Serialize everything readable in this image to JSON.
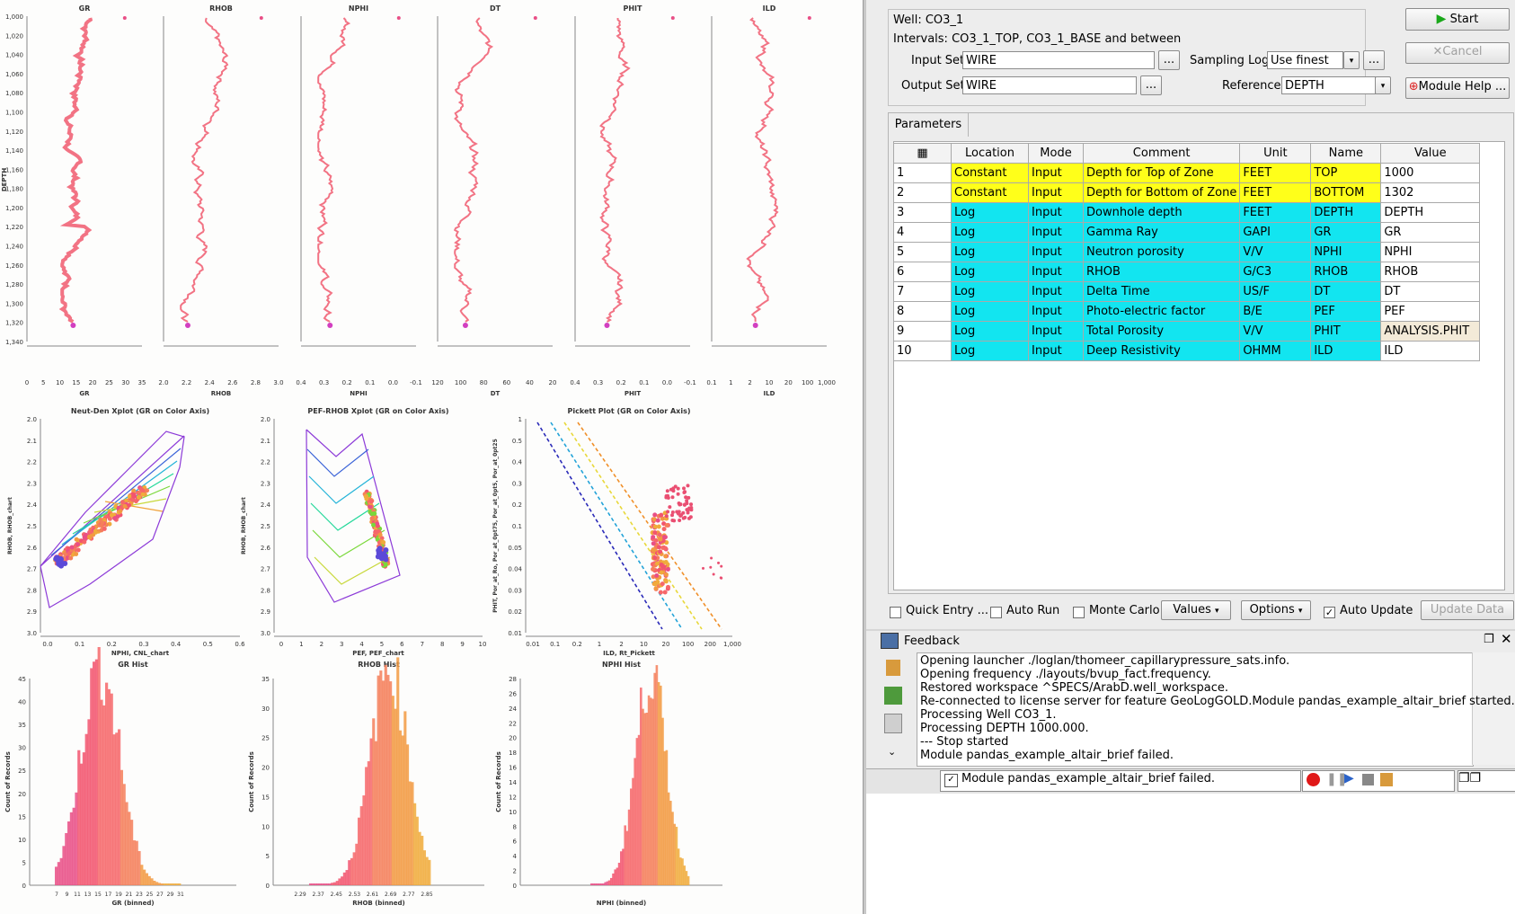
{
  "tracks": [
    {
      "name": "GR",
      "xlabel": "GR",
      "ticks": [
        "0",
        "5",
        "10",
        "15",
        "20",
        "25",
        "30",
        "35"
      ],
      "color": "#f05a6e"
    },
    {
      "name": "RHOB",
      "xlabel": "RHOB",
      "ticks": [
        "2.0",
        "2.2",
        "2.4",
        "2.6",
        "2.8",
        "3.0"
      ],
      "color": "#f05a6e"
    },
    {
      "name": "NPHI",
      "xlabel": "NPHI",
      "ticks": [
        "0.4",
        "0.3",
        "0.2",
        "0.1",
        "0.0",
        "-0.1"
      ],
      "color": "#f05a6e"
    },
    {
      "name": "DT",
      "xlabel": "DT",
      "ticks": [
        "120",
        "100",
        "80",
        "60",
        "40",
        "20"
      ],
      "color": "#f05a6e"
    },
    {
      "name": "PHIT",
      "xlabel": "PHIT",
      "ticks": [
        "0.4",
        "0.3",
        "0.2",
        "0.1",
        "0.0",
        "-0.1"
      ],
      "color": "#f05a6e"
    },
    {
      "name": "ILD",
      "xlabel": "ILD",
      "ticks": [
        "0.1",
        "1",
        "2",
        "10",
        "20",
        "100",
        "1,000"
      ],
      "color": "#f05a6e"
    }
  ],
  "depth_axis": {
    "title": "DEPTH",
    "ticks": [
      "1,000",
      "1,020",
      "1,040",
      "1,060",
      "1,080",
      "1,100",
      "1,120",
      "1,140",
      "1,160",
      "1,180",
      "1,200",
      "1,220",
      "1,240",
      "1,260",
      "1,280",
      "1,300",
      "1,320",
      "1,340"
    ]
  },
  "xplots": [
    {
      "title": "Neut-Den Xplot (GR on Color Axis)",
      "xlabel": "NPHI, CNL_chart",
      "ylabel": "RHOB, RHOB_chart",
      "xticks": [
        "0.0",
        "0.1",
        "0.2",
        "0.3",
        "0.4",
        "0.5",
        "0.6"
      ],
      "yticks": [
        "2.0",
        "2.1",
        "2.2",
        "2.3",
        "2.4",
        "2.5",
        "2.6",
        "2.7",
        "2.8",
        "2.9",
        "3.0"
      ]
    },
    {
      "title": "PEF-RHOB Xplot (GR on Color Axis)",
      "xlabel": "PEF, PEF_chart",
      "ylabel": "RHOB, RHOB_chart",
      "xticks": [
        "0",
        "1",
        "2",
        "3",
        "4",
        "5",
        "6",
        "7",
        "8",
        "9",
        "10"
      ],
      "yticks": [
        "2.0",
        "2.1",
        "2.2",
        "2.3",
        "2.4",
        "2.5",
        "2.6",
        "2.7",
        "2.8",
        "2.9",
        "3.0"
      ]
    },
    {
      "title": "Pickett Plot (GR on Color Axis)",
      "xlabel": "ILD, Rt_Pickett",
      "ylabel": "PHIT, Por_at_Ro, Por_at_0pt75, Por_at_0pt5, Por_at_0pt25",
      "xticks": [
        "0.01",
        "0.1",
        "0.2",
        "1",
        "2",
        "10",
        "20",
        "100",
        "200",
        "1,000"
      ],
      "yticks": [
        "1",
        "0.5",
        "0.4",
        "0.3",
        "0.2",
        "0.1",
        "0.05",
        "0.04",
        "0.03",
        "0.02",
        "0.01"
      ]
    }
  ],
  "hists": [
    {
      "title": "GR Hist",
      "xlabel": "GR (binned)",
      "ylabel": "Count of Records",
      "xticks": [
        "7",
        "9",
        "11",
        "13",
        "15",
        "17",
        "19",
        "21",
        "23",
        "25",
        "27",
        "29",
        "31"
      ],
      "yticks": [
        "0",
        "5",
        "10",
        "15",
        "20",
        "25",
        "30",
        "35",
        "40",
        "45"
      ]
    },
    {
      "title": "RHOB Hist",
      "xlabel": "RHOB (binned)",
      "ylabel": "Count of Records",
      "xticks": [
        "2.29",
        "2.37",
        "2.45",
        "2.53",
        "2.61",
        "2.69",
        "2.77",
        "2.85"
      ],
      "yticks": [
        "0",
        "5",
        "10",
        "15",
        "20",
        "25",
        "30",
        "35"
      ]
    },
    {
      "title": "NPHI Hist",
      "xlabel": "NPHI (binned)",
      "ylabel": "Count of Records",
      "xticks": [],
      "yticks": [
        "0",
        "2",
        "4",
        "6",
        "8",
        "10",
        "12",
        "14",
        "16",
        "18",
        "20",
        "22",
        "24",
        "26",
        "28"
      ]
    }
  ],
  "header": {
    "well": "Well: CO3_1",
    "intervals": "Intervals: CO3_1_TOP, CO3_1_BASE and between",
    "input_set_label": "Input Set",
    "input_set_value": "WIRE",
    "output_set_label": "Output Set",
    "output_set_value": "WIRE",
    "sampling_log_label": "Sampling Log",
    "sampling_log_value": "Use finest",
    "reference_label": "Reference",
    "reference_value": "DEPTH",
    "browse": "...",
    "start": "Start",
    "cancel": "Cancel",
    "module_help": "Module Help ..."
  },
  "parameters_tab": "Parameters",
  "param_columns": [
    "Location",
    "Mode",
    "Comment",
    "Unit",
    "Name",
    "Value"
  ],
  "param_rows": [
    {
      "num": "1",
      "location": "Constant",
      "mode": "Input",
      "comment": "Depth for Top of Zone",
      "unit": "FEET",
      "name": "TOP",
      "value": "1000",
      "cls": "yel"
    },
    {
      "num": "2",
      "location": "Constant",
      "mode": "Input",
      "comment": "Depth for Bottom of Zone",
      "unit": "FEET",
      "name": "BOTTOM",
      "value": "1302",
      "cls": "yel"
    },
    {
      "num": "3",
      "location": "Log",
      "mode": "Input",
      "comment": "Downhole depth",
      "unit": "FEET",
      "name": "DEPTH",
      "value": "DEPTH",
      "cls": "cyn"
    },
    {
      "num": "4",
      "location": "Log",
      "mode": "Input",
      "comment": "Gamma Ray",
      "unit": "GAPI",
      "name": "GR",
      "value": "GR",
      "cls": "cyn"
    },
    {
      "num": "5",
      "location": "Log",
      "mode": "Input",
      "comment": "Neutron porosity",
      "unit": "V/V",
      "name": "NPHI",
      "value": "NPHI",
      "cls": "cyn"
    },
    {
      "num": "6",
      "location": "Log",
      "mode": "Input",
      "comment": "RHOB",
      "unit": "G/C3",
      "name": "RHOB",
      "value": "RHOB",
      "cls": "cyn"
    },
    {
      "num": "7",
      "location": "Log",
      "mode": "Input",
      "comment": "Delta Time",
      "unit": "US/F",
      "name": "DT",
      "value": "DT",
      "cls": "cyn"
    },
    {
      "num": "8",
      "location": "Log",
      "mode": "Input",
      "comment": "Photo-electric factor",
      "unit": "B/E",
      "name": "PEF",
      "value": "PEF",
      "cls": "cyn"
    },
    {
      "num": "9",
      "location": "Log",
      "mode": "Input",
      "comment": "Total Porosity",
      "unit": "V/V",
      "name": "PHIT",
      "value": "ANALYSIS.PHIT",
      "cls": "cyn"
    },
    {
      "num": "10",
      "location": "Log",
      "mode": "Input",
      "comment": "Deep Resistivity",
      "unit": "OHMM",
      "name": "ILD",
      "value": "ILD",
      "cls": "cyn"
    }
  ],
  "bottom_bar": {
    "quick_entry": "Quick Entry ...",
    "auto_run": "Auto Run",
    "monte_carlo": "Monte Carlo",
    "values": "Values",
    "options": "Options",
    "auto_update": "Auto Update",
    "update_data": "Update Data"
  },
  "feedback": {
    "title": "Feedback",
    "lines": [
      "Opening launcher ./loglan/thomeer_capillarypressure_sats.info.",
      "Opening frequency ./layouts/bvup_fact.frequency.",
      "Restored workspace ^SPECS/ArabD.well_workspace.",
      "Re-connected to license server for feature GeoLogGOLD.Module pandas_example_altair_brief started.",
      "Processing Well CO3_1.",
      "Processing DEPTH 1000.000.",
      "--- Stop started",
      "Module pandas_example_altair_brief failed."
    ]
  },
  "status": {
    "message": "Module pandas_example_altair_brief failed."
  }
}
